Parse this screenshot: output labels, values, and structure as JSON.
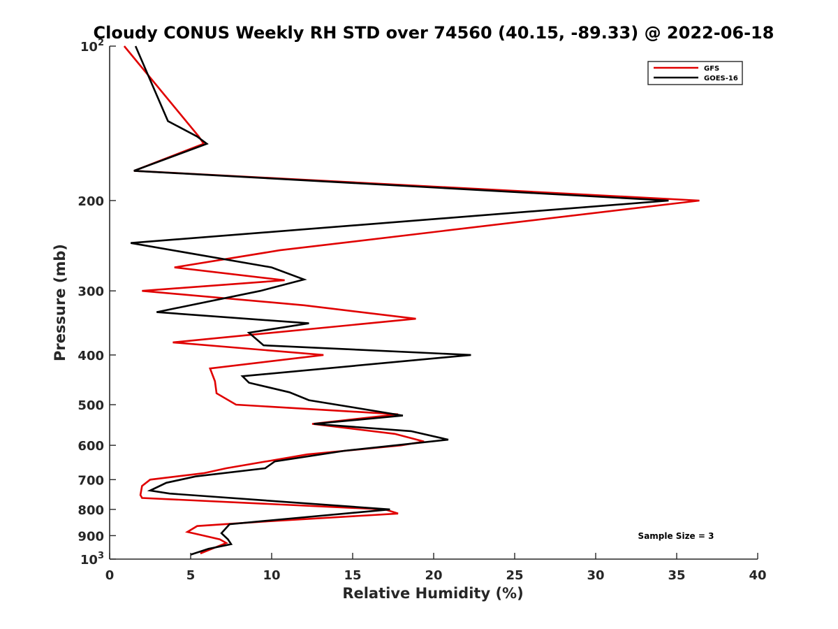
{
  "chart_data": {
    "type": "line",
    "title": "Cloudy CONUS Weekly RH STD over 74560 (40.15, -89.33) @ 2022-06-18",
    "xlabel": "Relative Humidity (%)",
    "ylabel": "Pressure (mb)",
    "xlim": [
      0,
      40
    ],
    "ylim": [
      100,
      1000
    ],
    "y_scale": "log",
    "y_reversed": true,
    "x_ticks": [
      0,
      5,
      10,
      15,
      20,
      25,
      30,
      35,
      40
    ],
    "y_ticks": [
      {
        "value": 100,
        "base": "10",
        "exp": "2"
      },
      {
        "value": 200,
        "label": "200"
      },
      {
        "value": 300,
        "label": "300"
      },
      {
        "value": 400,
        "label": "400"
      },
      {
        "value": 500,
        "label": "500"
      },
      {
        "value": 600,
        "label": "600"
      },
      {
        "value": 700,
        "label": "700"
      },
      {
        "value": 800,
        "label": "800"
      },
      {
        "value": 900,
        "label": "900"
      },
      {
        "value": 1000,
        "base": "10",
        "exp": "3"
      }
    ],
    "grid": false,
    "legend_position": "top-right",
    "annotation": "Sample Size = 3",
    "series": [
      {
        "name": "GFS",
        "color": "#e00000",
        "points": [
          [
            0.9,
            100
          ],
          [
            5.5,
            150
          ],
          [
            5.8,
            155
          ],
          [
            1.5,
            175
          ],
          [
            36.4,
            200
          ],
          [
            10.5,
            250
          ],
          [
            4.0,
            270
          ],
          [
            10.8,
            286
          ],
          [
            2.0,
            300
          ],
          [
            12.0,
            320
          ],
          [
            18.9,
            340
          ],
          [
            3.9,
            378
          ],
          [
            13.2,
            400
          ],
          [
            6.2,
            425
          ],
          [
            6.5,
            450
          ],
          [
            6.6,
            475
          ],
          [
            7.8,
            500
          ],
          [
            17.8,
            522
          ],
          [
            12.5,
            545
          ],
          [
            17.6,
            570
          ],
          [
            19.4,
            590
          ],
          [
            18.0,
            600
          ],
          [
            12.2,
            625
          ],
          [
            7.2,
            665
          ],
          [
            5.8,
            680
          ],
          [
            2.5,
            700
          ],
          [
            2.0,
            720
          ],
          [
            1.9,
            750
          ],
          [
            2.0,
            760
          ],
          [
            17.0,
            800
          ],
          [
            17.8,
            815
          ],
          [
            9.5,
            845
          ],
          [
            5.4,
            862
          ],
          [
            4.8,
            885
          ],
          [
            5.8,
            900
          ],
          [
            6.8,
            915
          ],
          [
            7.2,
            930
          ],
          [
            5.6,
            975
          ]
        ]
      },
      {
        "name": "GOES-16",
        "color": "#000000",
        "points": [
          [
            1.6,
            100
          ],
          [
            3.6,
            140
          ],
          [
            5.4,
            150
          ],
          [
            6.0,
            155
          ],
          [
            1.5,
            175
          ],
          [
            34.5,
            200
          ],
          [
            1.3,
            242
          ],
          [
            10.0,
            270
          ],
          [
            12.0,
            285
          ],
          [
            9.3,
            300
          ],
          [
            2.9,
            330
          ],
          [
            12.3,
            347
          ],
          [
            8.6,
            362
          ],
          [
            9.5,
            383
          ],
          [
            22.3,
            400
          ],
          [
            8.2,
            440
          ],
          [
            8.6,
            453
          ],
          [
            11.1,
            473
          ],
          [
            12.3,
            490
          ],
          [
            18.1,
            525
          ],
          [
            12.6,
            545
          ],
          [
            18.6,
            563
          ],
          [
            20.9,
            585
          ],
          [
            14.5,
            615
          ],
          [
            10.2,
            645
          ],
          [
            9.6,
            665
          ],
          [
            5.3,
            690
          ],
          [
            3.5,
            710
          ],
          [
            2.5,
            735
          ],
          [
            3.7,
            745
          ],
          [
            17.3,
            800
          ],
          [
            10.9,
            835
          ],
          [
            7.4,
            855
          ],
          [
            6.9,
            890
          ],
          [
            7.3,
            915
          ],
          [
            7.5,
            935
          ],
          [
            6.1,
            955
          ],
          [
            5.0,
            980
          ]
        ]
      }
    ]
  }
}
